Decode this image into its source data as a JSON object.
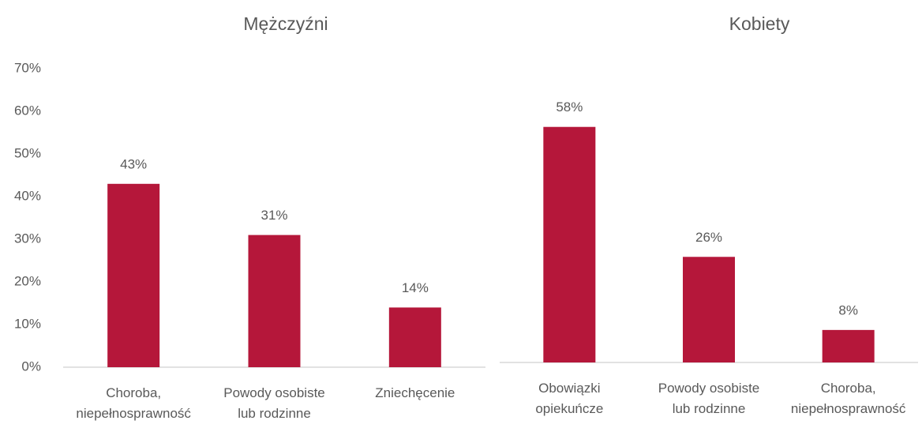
{
  "chart_data": [
    {
      "type": "bar",
      "title": "Mężczyźni",
      "categories": [
        "Choroba, niepełnosprawność",
        "Powody osobiste lub rodzinne",
        "Zniechęcenie"
      ],
      "values": [
        43,
        31,
        14
      ],
      "value_labels": [
        "43%",
        "31%",
        "14%"
      ],
      "color": "#b5173a",
      "ylim": [
        0,
        70
      ],
      "yticks": [
        {
          "value": 0,
          "label": "0%"
        },
        {
          "value": 10,
          "label": "10%"
        },
        {
          "value": 20,
          "label": "20%"
        },
        {
          "value": 30,
          "label": "30%"
        },
        {
          "value": 40,
          "label": "40%"
        },
        {
          "value": 50,
          "label": "50%"
        },
        {
          "value": 60,
          "label": "60%"
        },
        {
          "value": 70,
          "label": "70%"
        }
      ]
    },
    {
      "type": "bar",
      "title": "Kobiety",
      "categories": [
        "Obowiązki opiekuńcze",
        "Powody osobiste lub rodzinne",
        "Choroba, niepełnosprawność"
      ],
      "values": [
        58,
        26,
        8
      ],
      "value_labels": [
        "58%",
        "26%",
        "8%"
      ],
      "color": "#b5173a",
      "ylim": [
        0,
        70
      ]
    }
  ]
}
